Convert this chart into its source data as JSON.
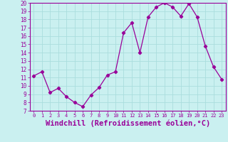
{
  "x": [
    0,
    1,
    2,
    3,
    4,
    5,
    6,
    7,
    8,
    9,
    10,
    11,
    12,
    13,
    14,
    15,
    16,
    17,
    18,
    19,
    20,
    21,
    22,
    23
  ],
  "y": [
    11.2,
    11.7,
    9.2,
    9.7,
    8.7,
    8.0,
    7.5,
    8.9,
    9.8,
    11.3,
    11.7,
    16.4,
    17.6,
    14.0,
    18.3,
    19.5,
    20.0,
    19.5,
    18.4,
    19.9,
    18.3,
    14.8,
    12.3,
    10.8
  ],
  "line_color": "#990099",
  "marker": "D",
  "marker_size": 2.2,
  "bg_color": "#caf0f0",
  "grid_color": "#aadddd",
  "xlabel": "Windchill (Refroidissement éolien,°C)",
  "xlabel_fontsize": 7.5,
  "tick_color": "#990099",
  "label_color": "#990099",
  "ylim": [
    7,
    20
  ],
  "yticks": [
    7,
    8,
    9,
    10,
    11,
    12,
    13,
    14,
    15,
    16,
    17,
    18,
    19,
    20
  ],
  "xticks": [
    0,
    1,
    2,
    3,
    4,
    5,
    6,
    7,
    8,
    9,
    10,
    11,
    12,
    13,
    14,
    15,
    16,
    17,
    18,
    19,
    20,
    21,
    22,
    23
  ],
  "spine_color": "#990099"
}
